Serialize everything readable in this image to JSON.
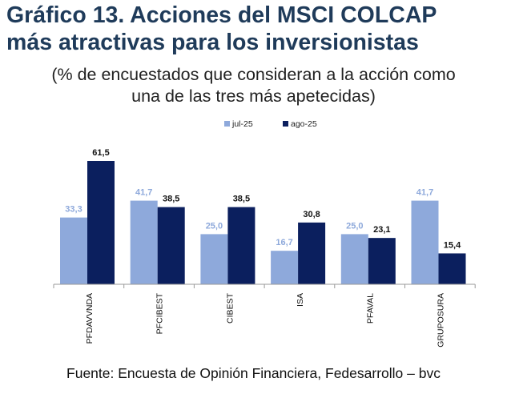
{
  "title_lines": [
    "Gráfico 13. Acciones del MSCI COLCAP",
    "más atractivas para los inversionistas"
  ],
  "subtitle_lines": [
    "(% de encuestados que consideran a la acción como",
    "una de las tres más apetecidas)"
  ],
  "source": "Fuente: Encuesta de Opinión Financiera, Fedesarrollo – bvc",
  "colors": {
    "jul": "#8ea9db",
    "ago": "#0b1f5e",
    "label_jul": "#8ea9db",
    "label_ago": "#111111",
    "axis": "#9a9a9a"
  },
  "chart_data": {
    "type": "bar",
    "title": "Gráfico 13. Acciones del MSCI COLCAP más atractivas para los inversionistas",
    "subtitle": "(% de encuestados que consideran a la acción como una de las tres más apetecidas)",
    "categories": [
      "PFDAVVNDA",
      "PFCIBEST",
      "CIBEST",
      "ISA",
      "PFAVAL",
      "GRUPOSURA"
    ],
    "series": [
      {
        "name": "jul-25",
        "values": [
          33.3,
          41.7,
          25.0,
          16.7,
          25.0,
          41.7
        ],
        "labels": [
          "33,3",
          "41,7",
          "25,0",
          "16,7",
          "25,0",
          "41,7"
        ]
      },
      {
        "name": "ago-25",
        "values": [
          61.5,
          38.5,
          38.5,
          30.8,
          23.1,
          15.4
        ],
        "labels": [
          "61,5",
          "38,5",
          "38,5",
          "30,8",
          "23,1",
          "15,4"
        ]
      }
    ],
    "xlabel": "",
    "ylabel": "",
    "ylim": [
      0,
      70
    ],
    "grid": false,
    "legend": "top-center"
  }
}
